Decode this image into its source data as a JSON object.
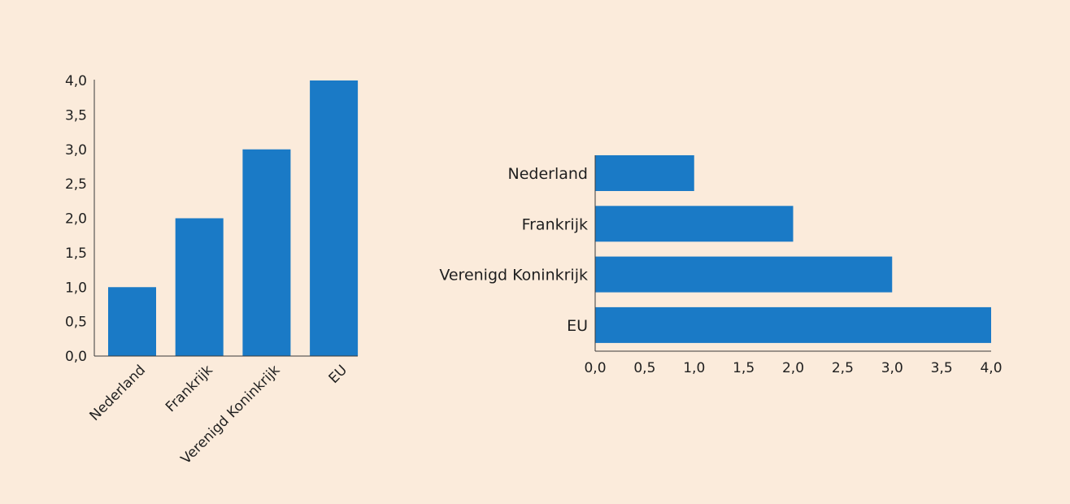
{
  "colors": {
    "background": "#fbebdb",
    "bar": "#1a7ac6",
    "axis": "#3a3a3a",
    "text": "#1f1f1f"
  },
  "chart_data": [
    {
      "type": "bar",
      "orientation": "vertical",
      "categories": [
        "Nederland",
        "Frankrijk",
        "Verenigd Koninkrijk",
        "EU"
      ],
      "values": [
        1.0,
        2.0,
        3.0,
        4.0
      ],
      "ylim": [
        0,
        4
      ],
      "yticks": [
        "0,0",
        "0,5",
        "1,0",
        "1,5",
        "2,0",
        "2,5",
        "3,0",
        "3,5",
        "4,0"
      ],
      "grid": false,
      "legend": "none"
    },
    {
      "type": "bar",
      "orientation": "horizontal",
      "categories": [
        "Nederland",
        "Frankrijk",
        "Verenigd Koninkrijk",
        "EU"
      ],
      "values": [
        1.0,
        2.0,
        3.0,
        4.0
      ],
      "xlim": [
        0,
        4
      ],
      "xticks": [
        "0,0",
        "0,5",
        "1,0",
        "1,5",
        "2,0",
        "2,5",
        "3,0",
        "3,5",
        "4,0"
      ],
      "grid": false,
      "legend": "none"
    }
  ]
}
